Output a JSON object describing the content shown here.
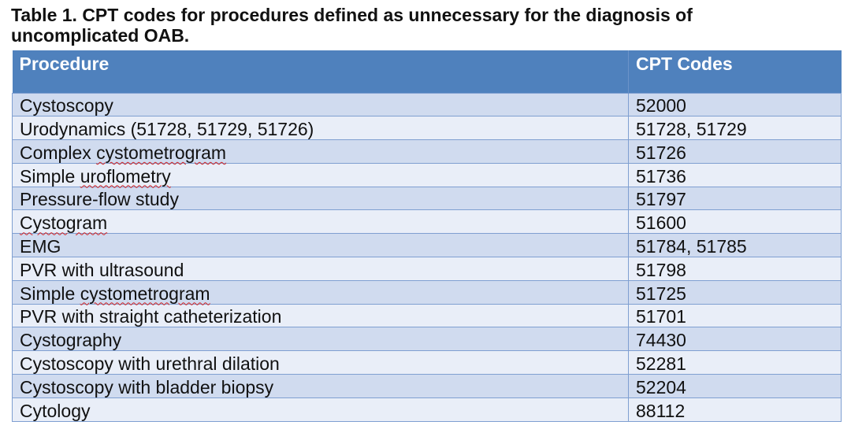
{
  "caption": {
    "line1": "Table 1. CPT codes for procedures defined as unnecessary for the diagnosis of",
    "line2": "uncomplicated OAB."
  },
  "table": {
    "headers": [
      "Procedure",
      "CPT Codes"
    ],
    "rows": [
      {
        "procedure": "Cystoscopy",
        "codes": "52000"
      },
      {
        "procedure": "Urodynamics (51728, 51729, 51726)",
        "codes": "51728, 51729"
      },
      {
        "procedure_prefix": "Complex ",
        "procedure_flagged": "cystometrogram",
        "codes": "51726"
      },
      {
        "procedure_prefix": "Simple ",
        "procedure_flagged": "uroflometry",
        "codes": "51736"
      },
      {
        "procedure": "Pressure-flow study",
        "codes": "51797"
      },
      {
        "procedure_prefix": "",
        "procedure_flagged": "Cystogram",
        "codes": "51600"
      },
      {
        "procedure": "EMG",
        "codes": "51784, 51785"
      },
      {
        "procedure": "PVR with ultrasound",
        "codes": "51798"
      },
      {
        "procedure_prefix": "Simple ",
        "procedure_flagged": "cystometrogram",
        "codes": "51725"
      },
      {
        "procedure": "PVR with straight catheterization",
        "codes": "51701"
      },
      {
        "procedure": "Cystography",
        "codes": "74430"
      },
      {
        "procedure": "Cystoscopy with urethral dilation",
        "codes": "52281"
      },
      {
        "procedure": "Cystoscopy with bladder biopsy",
        "codes": "52204"
      },
      {
        "procedure": "Cytology",
        "codes": "88112"
      }
    ]
  },
  "colors": {
    "header_bg": "#4f81bd",
    "row_odd_bg": "#d0dbef",
    "row_even_bg": "#e9eef8",
    "border": "#7f9fd1",
    "spellcheck": "#d42020"
  }
}
